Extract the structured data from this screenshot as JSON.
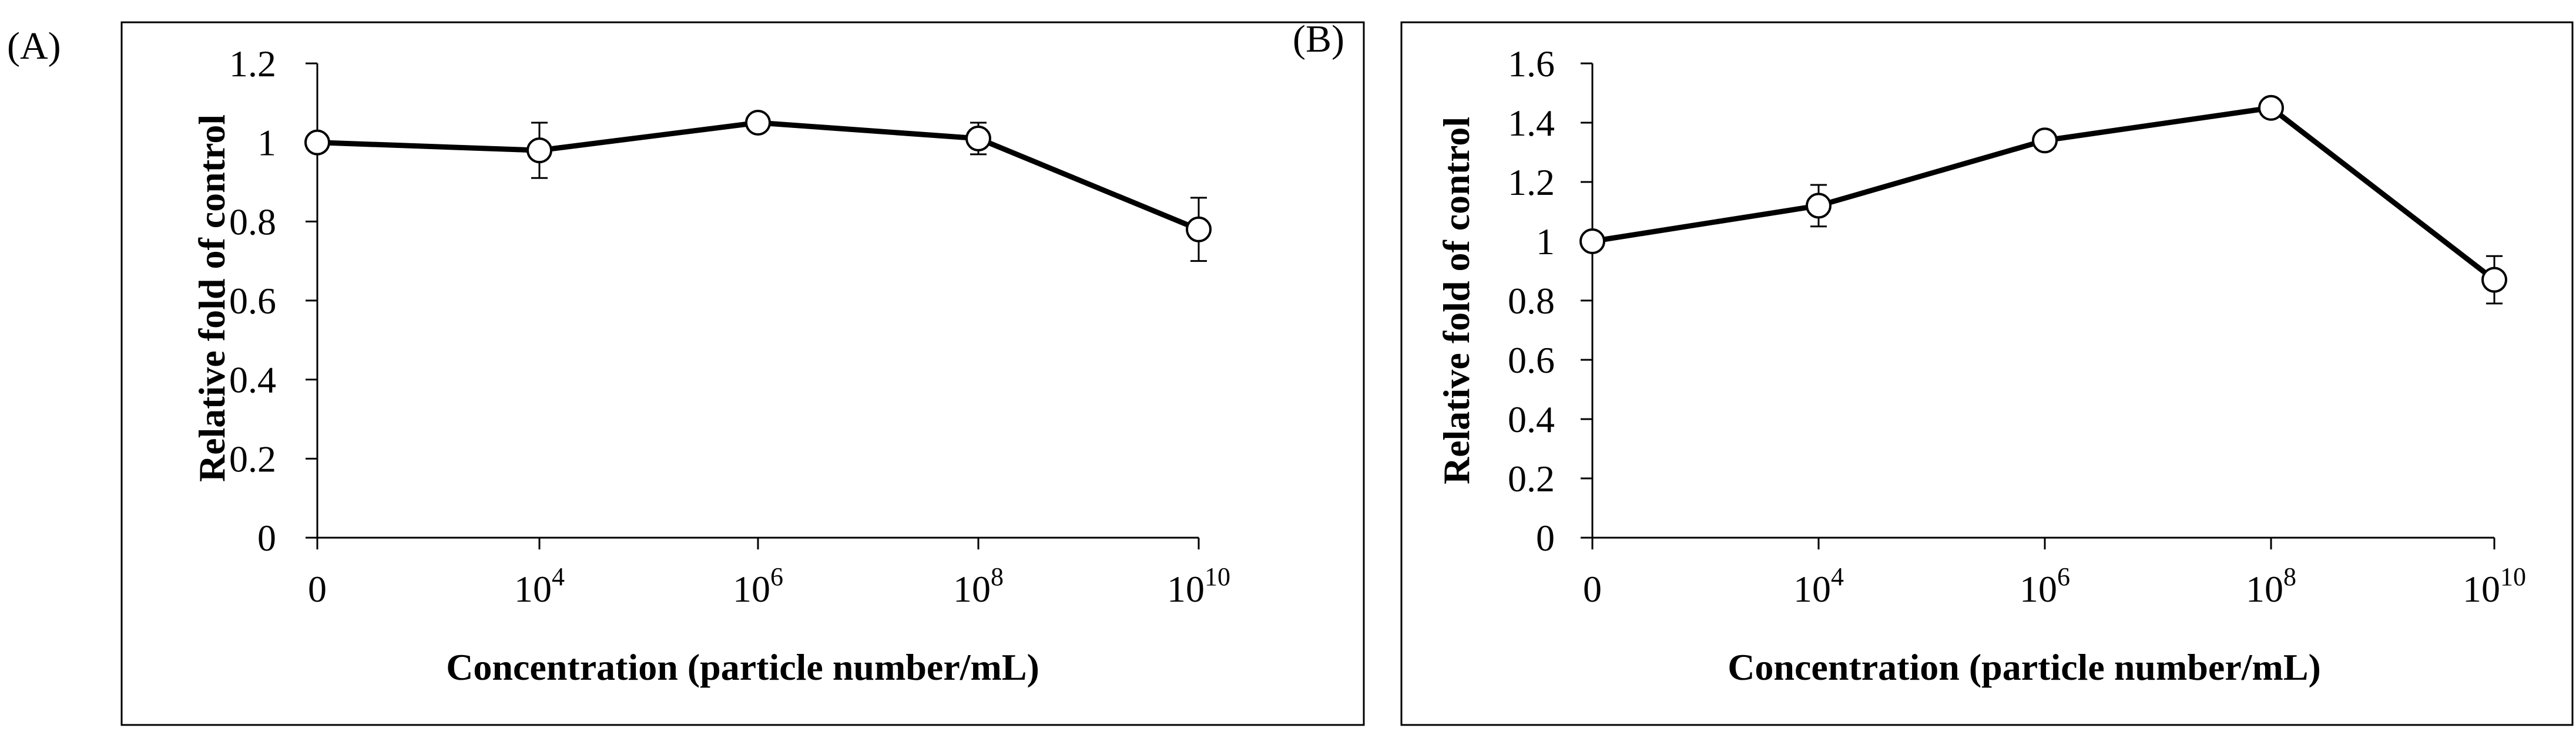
{
  "chart_data": [
    {
      "type": "line",
      "panel_label": "(A)",
      "xlabel": "Concentration (particle number/mL)",
      "ylabel": "Relative fold of control",
      "categories": [
        {
          "base": "0",
          "exp": ""
        },
        {
          "base": "10",
          "exp": "4"
        },
        {
          "base": "10",
          "exp": "6"
        },
        {
          "base": "10",
          "exp": "8"
        },
        {
          "base": "10",
          "exp": "10"
        }
      ],
      "values": [
        1.0,
        0.98,
        1.05,
        1.01,
        0.78
      ],
      "errors": [
        0.0,
        0.07,
        0.01,
        0.04,
        0.08
      ],
      "ylim": [
        0,
        1.2
      ],
      "yticks": [
        "0",
        "0.2",
        "0.4",
        "0.6",
        "0.8",
        "1",
        "1.2"
      ],
      "marker": "open-circle",
      "line_color": "#000000",
      "grid": false
    },
    {
      "type": "line",
      "panel_label": "(B)",
      "xlabel": "Concentration (particle number/mL)",
      "ylabel": "Relative fold of control",
      "categories": [
        {
          "base": "0",
          "exp": ""
        },
        {
          "base": "10",
          "exp": "4"
        },
        {
          "base": "10",
          "exp": "6"
        },
        {
          "base": "10",
          "exp": "8"
        },
        {
          "base": "10",
          "exp": "10"
        }
      ],
      "values": [
        1.0,
        1.12,
        1.34,
        1.45,
        0.87
      ],
      "errors": [
        0.0,
        0.07,
        0.01,
        0.01,
        0.08
      ],
      "ylim": [
        0,
        1.6
      ],
      "yticks": [
        "0",
        "0.2",
        "0.4",
        "0.6",
        "0.8",
        "1",
        "1.2",
        "1.4",
        "1.6"
      ],
      "marker": "open-circle",
      "line_color": "#000000",
      "grid": false
    }
  ]
}
